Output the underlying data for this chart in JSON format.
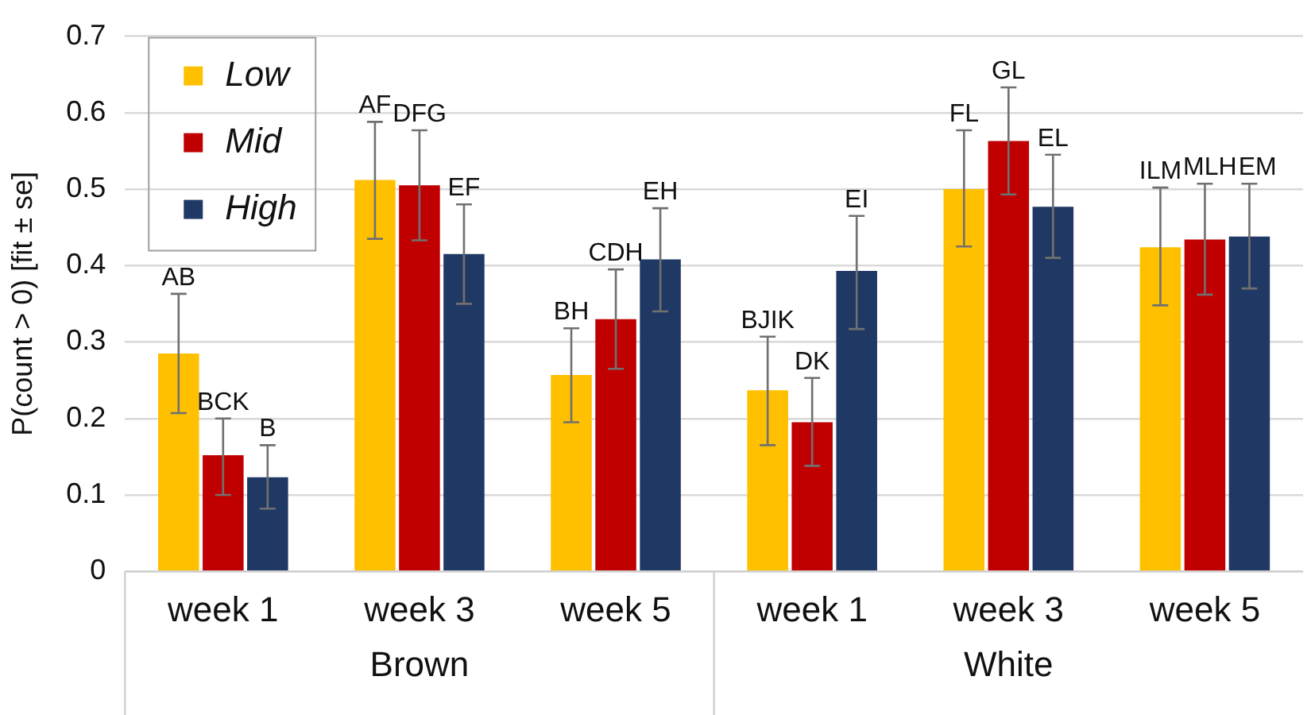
{
  "chart_data": {
    "type": "bar",
    "ylabel": "P(count > 0) [fit ± se]",
    "categories": [
      "week 1",
      "week 3",
      "week 5",
      "week 1",
      "week 3",
      "week 5"
    ],
    "series": [
      {
        "name": "Low",
        "color": "#ffc000",
        "values": [
          0.285,
          0.512,
          0.257,
          0.237,
          0.5,
          0.424
        ],
        "errors": [
          [
            0.207,
            0.363
          ],
          [
            0.435,
            0.588
          ],
          [
            0.195,
            0.318
          ],
          [
            0.165,
            0.307
          ],
          [
            0.425,
            0.577
          ],
          [
            0.348,
            0.502
          ]
        ],
        "value_labels": [
          "AB",
          "AF",
          "BH",
          "BJIK",
          "FL",
          "ILM"
        ]
      },
      {
        "name": "Mid",
        "color": "#c00000",
        "values": [
          0.152,
          0.505,
          0.33,
          0.195,
          0.563,
          0.434
        ],
        "errors": [
          [
            0.1,
            0.2
          ],
          [
            0.433,
            0.577
          ],
          [
            0.265,
            0.395
          ],
          [
            0.138,
            0.253
          ],
          [
            0.493,
            0.633
          ],
          [
            0.362,
            0.507
          ]
        ],
        "value_labels": [
          "BCK",
          "DFG",
          "CDH",
          "DK",
          "GL",
          "MLH"
        ]
      },
      {
        "name": "High",
        "color": "#203864",
        "values": [
          0.123,
          0.415,
          0.408,
          0.393,
          0.477,
          0.438
        ],
        "errors": [
          [
            0.082,
            0.165
          ],
          [
            0.35,
            0.48
          ],
          [
            0.34,
            0.475
          ],
          [
            0.317,
            0.465
          ],
          [
            0.41,
            0.545
          ],
          [
            0.37,
            0.507
          ]
        ],
        "value_labels": [
          "B",
          "EF",
          "EH",
          "EI",
          "EL",
          "EM"
        ]
      }
    ],
    "ylim": [
      0,
      0.7
    ],
    "yticks": [
      0,
      0.1,
      0.2,
      0.3,
      0.4,
      0.5,
      0.6,
      0.7
    ],
    "grid": "y",
    "legend": "top left",
    "annotations": [
      "Brown",
      "White"
    ]
  }
}
